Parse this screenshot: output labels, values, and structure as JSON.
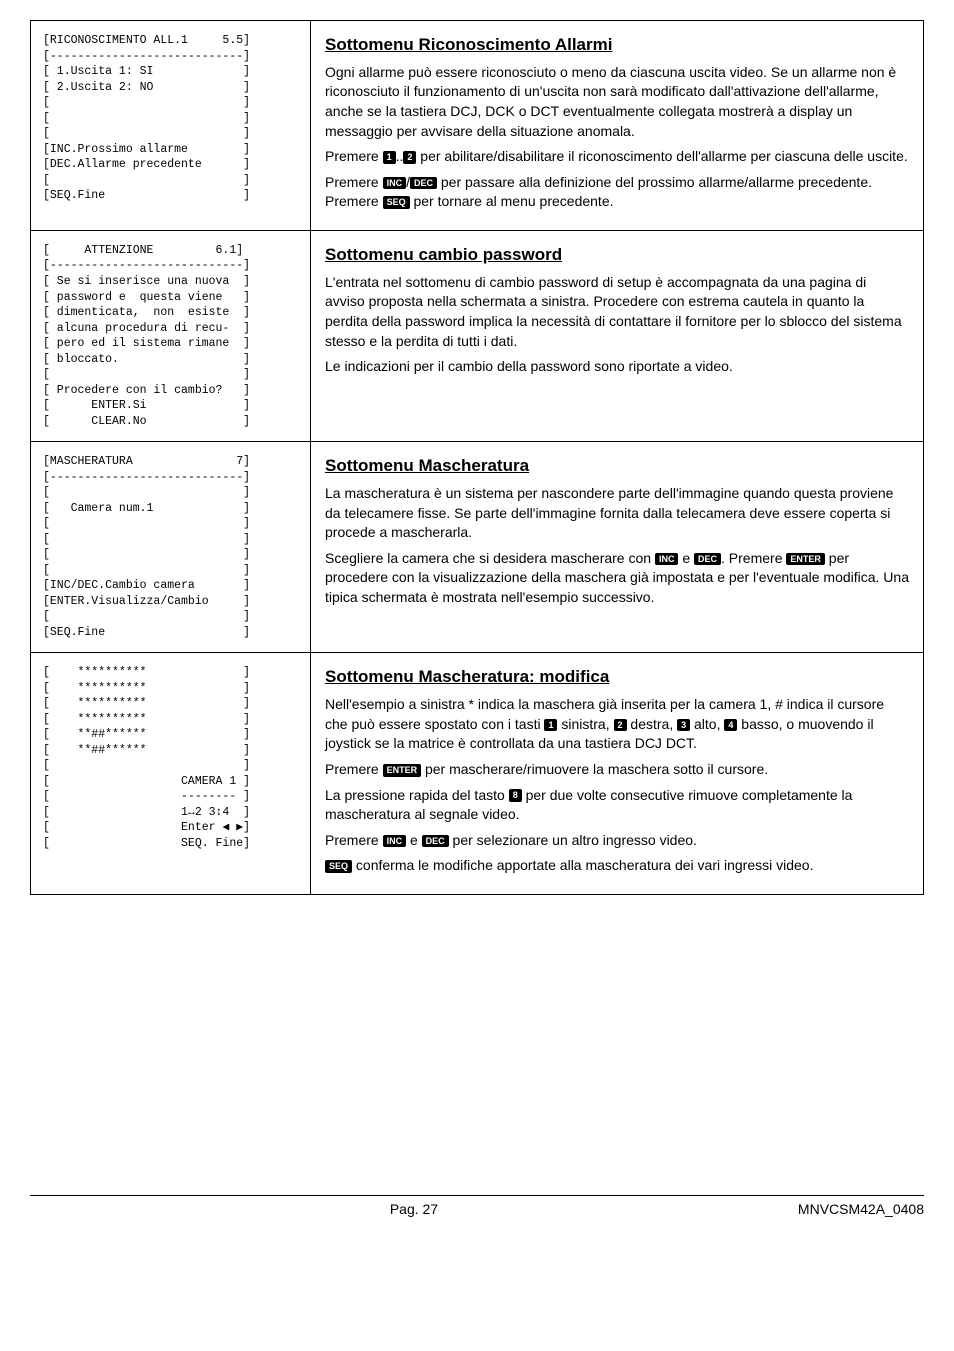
{
  "rows": [
    {
      "terminal": "[RICONOSCIMENTO ALL.1     5.5]\n[----------------------------]\n[ 1.Uscita 1: SI             ]\n[ 2.Uscita 2: NO             ]\n[                            ]\n[                            ]\n[                            ]\n[INC.Prossimo allarme        ]\n[DEC.Allarme precedente      ]\n[                            ]\n[SEQ.Fine                    ]",
      "title": "Sottomenu Riconoscimento Allarmi",
      "body": [
        {
          "t": "text",
          "v": "Ogni allarme può essere riconosciuto o meno da ciascuna uscita video. Se un allarme non è riconosciuto il funzionamento di un'uscita non sarà modificato dall'attivazione dell'allarme, anche se la tastiera DCJ, DCK o DCT eventualmente collegata mostrerà a display un messaggio per avvisare della situazione anomala."
        },
        {
          "t": "seq",
          "parts": [
            {
              "t": "text",
              "v": "Premere "
            },
            {
              "t": "key",
              "v": "1"
            },
            {
              "t": "text",
              "v": ".."
            },
            {
              "t": "key",
              "v": "2"
            },
            {
              "t": "text",
              "v": " per abilitare/disabilitare il riconoscimento dell'allarme per ciascuna delle uscite."
            }
          ]
        },
        {
          "t": "seq",
          "parts": [
            {
              "t": "text",
              "v": "Premere "
            },
            {
              "t": "key",
              "v": "INC"
            },
            {
              "t": "text",
              "v": "/"
            },
            {
              "t": "key",
              "v": "DEC"
            },
            {
              "t": "text",
              "v": " per passare alla definizione del prossimo allarme/allarme precedente. Premere "
            },
            {
              "t": "key",
              "v": "SEQ"
            },
            {
              "t": "text",
              "v": " per tornare al menu precedente."
            }
          ]
        }
      ]
    },
    {
      "terminal": "[     ATTENZIONE         6.1]\n[----------------------------]\n[ Se si inserisce una nuova  ]\n[ password e  questa viene   ]\n[ dimenticata,  non  esiste  ]\n[ alcuna procedura di recu-  ]\n[ pero ed il sistema rimane  ]\n[ bloccato.                  ]\n[                            ]\n[ Procedere con il cambio?   ]\n[      ENTER.Si              ]\n[      CLEAR.No              ]",
      "title": "Sottomenu cambio password",
      "body": [
        {
          "t": "text",
          "v": "L'entrata nel sottomenu di cambio password di setup è accompagnata da una pagina di avviso proposta nella schermata a sinistra. Procedere con estrema cautela in quanto la perdita della password implica la necessità di contattare il fornitore per lo sblocco del sistema stesso e la perdita di tutti i dati."
        },
        {
          "t": "text",
          "v": "Le indicazioni per il cambio della password sono riportate a video."
        }
      ]
    },
    {
      "terminal": "[MASCHERATURA               7]\n[----------------------------]\n[                            ]\n[   Camera num.1             ]\n[                            ]\n[                            ]\n[                            ]\n[                            ]\n[INC/DEC.Cambio camera       ]\n[ENTER.Visualizza/Cambio     ]\n[                            ]\n[SEQ.Fine                    ]",
      "title": "Sottomenu Mascheratura",
      "body": [
        {
          "t": "text",
          "v": "La mascheratura è un sistema per nascondere parte dell'immagine quando questa proviene da telecamere fisse. Se parte dell'immagine fornita dalla telecamera deve essere coperta si procede a mascherarla."
        },
        {
          "t": "seq",
          "parts": [
            {
              "t": "text",
              "v": "Scegliere la camera che si desidera mascherare con "
            },
            {
              "t": "key",
              "v": "INC"
            },
            {
              "t": "text",
              "v": " e "
            },
            {
              "t": "key",
              "v": "DEC"
            },
            {
              "t": "text",
              "v": ". Premere "
            },
            {
              "t": "key",
              "v": "ENTER"
            },
            {
              "t": "text",
              "v": " per procedere con la visualizzazione della maschera già impostata e per l'eventuale modifica. Una tipica schermata è mostrata nell'esempio successivo."
            }
          ]
        }
      ]
    },
    {
      "terminal": "[    **********              ]\n[    **********              ]\n[    **********              ]\n[    **********              ]\n[    **##******              ]\n[    **##******              ]\n[                            ]\n[                   CAMERA 1 ]\n[                   -------- ]\n[                   1↔2 3↕4  ]\n[                   Enter ◀ ▶]\n[                   SEQ. Fine]",
      "title": "Sottomenu Mascheratura: modifica",
      "body": [
        {
          "t": "seq",
          "parts": [
            {
              "t": "text",
              "v": "Nell'esempio a sinistra * indica la maschera già inserita per la camera 1, # indica il cursore che può essere spostato con i tasti "
            },
            {
              "t": "key",
              "v": "1"
            },
            {
              "t": "text",
              "v": " sinistra, "
            },
            {
              "t": "key",
              "v": "2"
            },
            {
              "t": "text",
              "v": " destra, "
            },
            {
              "t": "key",
              "v": "3"
            },
            {
              "t": "text",
              "v": " alto, "
            },
            {
              "t": "key",
              "v": "4"
            },
            {
              "t": "text",
              "v": " basso, o muovendo il joystick se la matrice è controllata da una tastiera DCJ DCT."
            }
          ]
        },
        {
          "t": "seq",
          "parts": [
            {
              "t": "text",
              "v": "Premere "
            },
            {
              "t": "key",
              "v": "ENTER"
            },
            {
              "t": "text",
              "v": " per mascherare/rimuovere la maschera sotto il cursore."
            }
          ]
        },
        {
          "t": "seq",
          "parts": [
            {
              "t": "text",
              "v": "La pressione rapida del tasto "
            },
            {
              "t": "key",
              "v": "8"
            },
            {
              "t": "text",
              "v": " per due volte consecutive rimuove completamente la mascheratura al segnale video."
            }
          ]
        },
        {
          "t": "seq",
          "parts": [
            {
              "t": "text",
              "v": "Premere "
            },
            {
              "t": "key",
              "v": "INC"
            },
            {
              "t": "text",
              "v": " e "
            },
            {
              "t": "key",
              "v": "DEC"
            },
            {
              "t": "text",
              "v": " per selezionare un altro ingresso video."
            }
          ]
        },
        {
          "t": "seq",
          "parts": [
            {
              "t": "key",
              "v": "SEQ"
            },
            {
              "t": "text",
              "v": " conferma le modifiche apportate alla mascheratura dei vari ingressi video."
            }
          ]
        }
      ]
    }
  ],
  "footer": {
    "page": "Pag. 27",
    "doc": "MNVCSM42A_0408"
  }
}
